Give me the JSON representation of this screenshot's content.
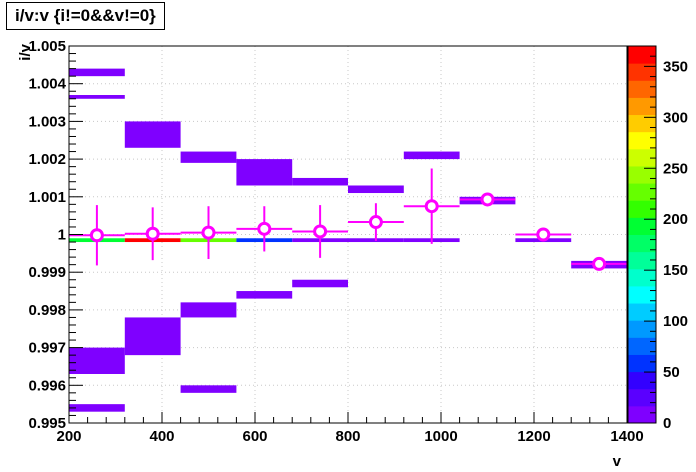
{
  "title": "i/v:v {i!=0&&v!=0}",
  "chart_data": {
    "type": "heatmap",
    "title": "i/v:v {i!=0&&v!=0}",
    "xlabel": "v",
    "ylabel": "i/v",
    "xlim": [
      200,
      1400
    ],
    "ylim": [
      0.995,
      1.005
    ],
    "x_ticks": [
      "200",
      "400",
      "600",
      "800",
      "1000",
      "1200",
      "1400"
    ],
    "y_ticks": [
      "0.995",
      "0.996",
      "0.997",
      "0.998",
      "0.999",
      "1",
      "1.001",
      "1.002",
      "1.003",
      "1.004",
      "1.005"
    ],
    "grid": true,
    "colorbar": {
      "min": 0,
      "max": 370,
      "ticks": [
        "0",
        "50",
        "100",
        "150",
        "200",
        "250",
        "300",
        "350"
      ],
      "colors": [
        "#7f00ff",
        "#5a00ff",
        "#3300ff",
        "#0033ff",
        "#0066ff",
        "#0099ff",
        "#00ccff",
        "#00ffff",
        "#00ffcc",
        "#00ff99",
        "#00ff66",
        "#00ff33",
        "#33ff00",
        "#66ff00",
        "#99ff00",
        "#ccff00",
        "#ffff00",
        "#ffcc00",
        "#ff9900",
        "#ff6600",
        "#ff3300",
        "#ff0000"
      ]
    },
    "cells": [
      {
        "x0": 200,
        "x1": 320,
        "y0": 1.0042,
        "y1": 1.0044,
        "count": 5
      },
      {
        "x0": 200,
        "x1": 320,
        "y0": 1.0036,
        "y1": 1.0037,
        "count": 5
      },
      {
        "x0": 200,
        "x1": 320,
        "y0": 0.9998,
        "y1": 0.9999,
        "count": 200
      },
      {
        "x0": 200,
        "x1": 320,
        "y0": 0.9963,
        "y1": 0.997,
        "count": 5
      },
      {
        "x0": 200,
        "x1": 320,
        "y0": 0.9953,
        "y1": 0.9955,
        "count": 5
      },
      {
        "x0": 320,
        "x1": 440,
        "y0": 1.0023,
        "y1": 1.003,
        "count": 5
      },
      {
        "x0": 320,
        "x1": 440,
        "y0": 0.9998,
        "y1": 0.9999,
        "count": 365
      },
      {
        "x0": 320,
        "x1": 440,
        "y0": 0.9968,
        "y1": 0.9978,
        "count": 5
      },
      {
        "x0": 440,
        "x1": 560,
        "y0": 1.0019,
        "y1": 1.0022,
        "count": 5
      },
      {
        "x0": 440,
        "x1": 560,
        "y0": 0.9998,
        "y1": 0.9999,
        "count": 230
      },
      {
        "x0": 440,
        "x1": 560,
        "y0": 0.9978,
        "y1": 0.9982,
        "count": 5
      },
      {
        "x0": 440,
        "x1": 560,
        "y0": 0.9958,
        "y1": 0.996,
        "count": 5
      },
      {
        "x0": 560,
        "x1": 680,
        "y0": 1.0013,
        "y1": 1.002,
        "count": 5
      },
      {
        "x0": 560,
        "x1": 680,
        "y0": 0.9998,
        "y1": 0.9999,
        "count": 55
      },
      {
        "x0": 560,
        "x1": 680,
        "y0": 0.9983,
        "y1": 0.9985,
        "count": 5
      },
      {
        "x0": 680,
        "x1": 800,
        "y0": 1.0013,
        "y1": 1.0015,
        "count": 5
      },
      {
        "x0": 680,
        "x1": 800,
        "y0": 0.9998,
        "y1": 0.9999,
        "count": 5
      },
      {
        "x0": 680,
        "x1": 800,
        "y0": 0.9986,
        "y1": 0.9988,
        "count": 5
      },
      {
        "x0": 800,
        "x1": 920,
        "y0": 1.0011,
        "y1": 1.0013,
        "count": 5
      },
      {
        "x0": 800,
        "x1": 920,
        "y0": 0.9998,
        "y1": 0.9999,
        "count": 5
      },
      {
        "x0": 920,
        "x1": 1040,
        "y0": 1.002,
        "y1": 1.0022,
        "count": 5
      },
      {
        "x0": 920,
        "x1": 1040,
        "y0": 0.9998,
        "y1": 0.9999,
        "count": 5
      },
      {
        "x0": 1040,
        "x1": 1160,
        "y0": 1.0008,
        "y1": 1.001,
        "count": 5
      },
      {
        "x0": 1160,
        "x1": 1280,
        "y0": 0.9998,
        "y1": 0.9999,
        "count": 5
      },
      {
        "x0": 1280,
        "x1": 1400,
        "y0": 0.9991,
        "y1": 0.9993,
        "count": 5
      }
    ],
    "profile": [
      {
        "x": 260,
        "y": 0.99998,
        "xerr": 60,
        "yerr": 0.0008
      },
      {
        "x": 380,
        "y": 1.00002,
        "xerr": 60,
        "yerr": 0.0007
      },
      {
        "x": 500,
        "y": 1.00005,
        "xerr": 60,
        "yerr": 0.0007
      },
      {
        "x": 620,
        "y": 1.00015,
        "xerr": 60,
        "yerr": 0.0006
      },
      {
        "x": 740,
        "y": 1.00008,
        "xerr": 60,
        "yerr": 0.0007
      },
      {
        "x": 860,
        "y": 1.00033,
        "xerr": 60,
        "yerr": 0.0005
      },
      {
        "x": 980,
        "y": 1.00075,
        "xerr": 60,
        "yerr": 0.001
      },
      {
        "x": 1100,
        "y": 1.00093,
        "xerr": 60,
        "yerr": 0.0001
      },
      {
        "x": 1220,
        "y": 1.0,
        "xerr": 60,
        "yerr": 0.0001
      },
      {
        "x": 1340,
        "y": 0.99922,
        "xerr": 60,
        "yerr": 0.0001
      }
    ],
    "profile_color": "#ff00ff"
  }
}
